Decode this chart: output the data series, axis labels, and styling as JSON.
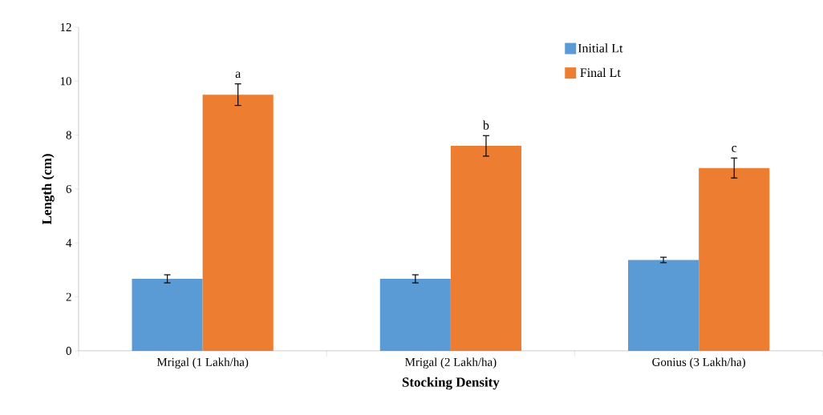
{
  "chart_data": {
    "type": "bar",
    "xlabel": "Stocking Density",
    "ylabel": "Length (cm)",
    "categories": [
      "Mrigal (1 Lakh/ha)",
      "Mrigal (2 Lakh/ha)",
      "Gonius (3 Lakh/ha)"
    ],
    "series": [
      {
        "name": "Initial Lt",
        "color": "#5b9bd5",
        "values": [
          2.67,
          2.67,
          3.37
        ],
        "errors": [
          0.15,
          0.15,
          0.1
        ]
      },
      {
        "name": "Final Lt",
        "color": "#ed7d31",
        "values": [
          9.5,
          7.6,
          6.78
        ],
        "errors": [
          0.4,
          0.38,
          0.37
        ]
      }
    ],
    "annotations": [
      "a",
      "b",
      "c"
    ],
    "ylim": [
      0,
      12
    ],
    "yticks": [
      0,
      2,
      4,
      6,
      8,
      10,
      12
    ],
    "legend": "top right",
    "grid": false
  }
}
